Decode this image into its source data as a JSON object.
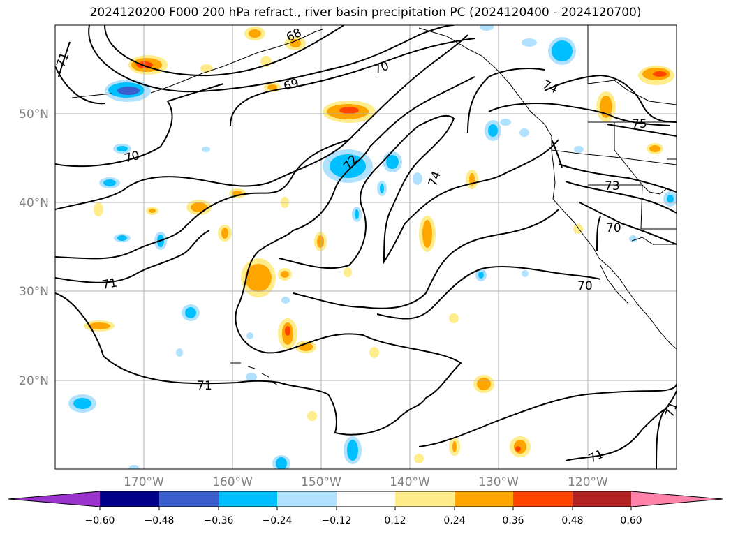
{
  "title": "2024120200 F000 200 hPa refract., river basin precipitation PC (2024120400 - 2024120700)",
  "map": {
    "lat_labels": [
      "50°N",
      "40°N",
      "30°N",
      "20°N"
    ],
    "lon_labels": [
      "170°W",
      "160°W",
      "150°W",
      "140°W",
      "130°W",
      "120°W"
    ],
    "contour_labels": [
      "71",
      "68",
      "69",
      "70",
      "74",
      "75",
      "70",
      "72",
      "74",
      "73",
      "70",
      "71",
      "70",
      "71",
      "71",
      "71"
    ],
    "contour_color": "#000000",
    "grid_color": "#b0b0b0",
    "coast_color": "#000000"
  },
  "colorbar": {
    "colors": [
      "#9933cc",
      "#00008b",
      "#3a5fcd",
      "#00bfff",
      "#b0e2ff",
      "#ffffff",
      "#ffec8b",
      "#ffa500",
      "#ff4500",
      "#b22222",
      "#ff82ab"
    ],
    "ticks": [
      "−0.60",
      "−0.48",
      "−0.36",
      "−0.24",
      "−0.12",
      "0.12",
      "0.24",
      "0.36",
      "0.48",
      "0.60"
    ]
  }
}
